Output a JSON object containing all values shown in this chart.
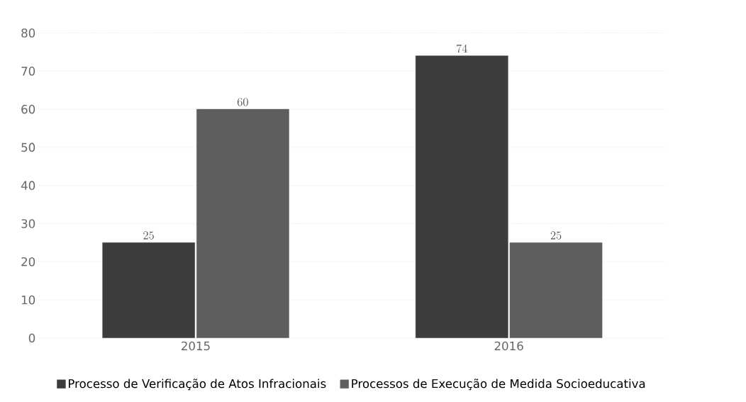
{
  "chart_data": {
    "type": "bar",
    "categories": [
      "2015",
      "2016"
    ],
    "series": [
      {
        "name": "Processo de Verificação de Atos Infracionais",
        "color": "#3c3c3c",
        "values": [
          25,
          74
        ]
      },
      {
        "name": "Processos de Execução de Medida Socioeducativa",
        "color": "#5e5e5e",
        "values": [
          60,
          25
        ]
      }
    ],
    "ylim": [
      0,
      80
    ],
    "yticks": [
      0,
      10,
      20,
      30,
      40,
      50,
      60,
      70,
      80
    ],
    "grid": "y",
    "legend": "bottom",
    "data_labels": true
  }
}
